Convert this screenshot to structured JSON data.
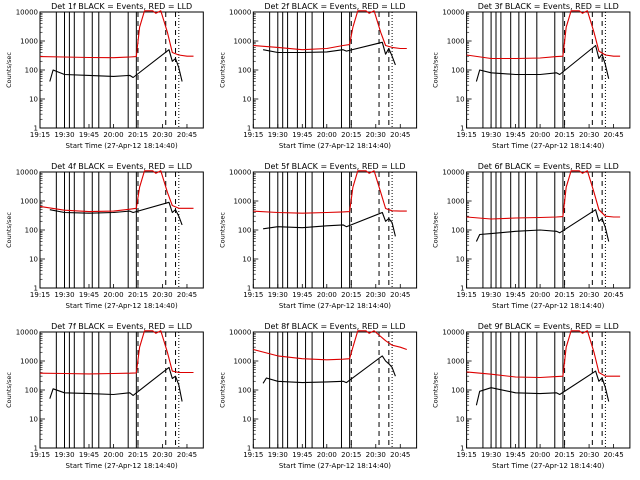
{
  "chart_data": [
    {
      "type": "line",
      "title": "Det 1f BLACK = Events, RED = LLD",
      "xlabel": "Start Time (27-Apr-12 18:14:40)",
      "ylabel": "Counts/sec",
      "y_scale": "log",
      "ylim": [
        1,
        10000
      ],
      "x_ticks": [
        "19:15",
        "19:30",
        "19:45",
        "20:00",
        "20:15",
        "20:30",
        "20:45"
      ],
      "y_ticks": [
        "1",
        "10",
        "100",
        "1000",
        "10000"
      ],
      "solid_vlines": [
        "19:25",
        "19:30",
        "19:33",
        "19:36",
        "19:42",
        "19:47",
        "19:51",
        "19:58",
        "20:09",
        "20:14"
      ],
      "dashed_vlines": [
        "20:15",
        "20:32",
        "20:38"
      ],
      "dotted_vlines": [
        "20:40"
      ],
      "series": [
        {
          "name": "RED",
          "color": "#dd0000",
          "x": [
            "19:15",
            "19:30",
            "19:45",
            "20:00",
            "20:10",
            "20:14",
            "20:16",
            "20:19",
            "20:24",
            "20:26",
            "20:29",
            "20:33",
            "20:36",
            "20:40",
            "20:45",
            "20:49"
          ],
          "y": [
            290,
            280,
            270,
            265,
            280,
            290,
            3000,
            11000,
            11000,
            9000,
            11000,
            2000,
            400,
            330,
            300,
            300
          ]
        },
        {
          "name": "BLACK",
          "color": "#000000",
          "x": [
            "19:21",
            "19:23",
            "19:30",
            "19:45",
            "20:00",
            "20:10",
            "20:12",
            "20:34",
            "20:36",
            "20:38",
            "20:40",
            "20:42"
          ],
          "y": [
            40,
            100,
            70,
            65,
            60,
            65,
            55,
            500,
            200,
            250,
            120,
            40
          ]
        }
      ]
    },
    {
      "type": "line",
      "title": "Det 2f BLACK = Events, RED = LLD",
      "xlabel": "Start Time (27-Apr-12 18:14:40)",
      "ylabel": "Counts/sec",
      "y_scale": "log",
      "ylim": [
        1,
        10000
      ],
      "x_ticks": [
        "19:15",
        "19:30",
        "19:45",
        "20:00",
        "20:15",
        "20:30",
        "20:45"
      ],
      "y_ticks": [
        "1",
        "10",
        "100",
        "1000",
        "10000"
      ],
      "solid_vlines": [
        "19:25",
        "19:30",
        "19:33",
        "19:36",
        "19:42",
        "19:47",
        "19:51",
        "19:58",
        "20:09",
        "20:14"
      ],
      "dashed_vlines": [
        "20:15",
        "20:32",
        "20:38"
      ],
      "dotted_vlines": [
        "20:40"
      ],
      "series": [
        {
          "name": "RED",
          "color": "#dd0000",
          "x": [
            "19:15",
            "19:30",
            "19:45",
            "20:00",
            "20:10",
            "20:14",
            "20:16",
            "20:19",
            "20:24",
            "20:26",
            "20:29",
            "20:33",
            "20:36",
            "20:40",
            "20:45",
            "20:49"
          ],
          "y": [
            700,
            600,
            500,
            550,
            700,
            750,
            3000,
            11000,
            11000,
            9000,
            11000,
            2000,
            700,
            600,
            550,
            550
          ]
        },
        {
          "name": "BLACK",
          "color": "#000000",
          "x": [
            "19:21",
            "19:30",
            "19:45",
            "20:00",
            "20:10",
            "20:12",
            "20:34",
            "20:36",
            "20:38",
            "20:40",
            "20:42"
          ],
          "y": [
            500,
            400,
            400,
            420,
            500,
            450,
            900,
            350,
            550,
            300,
            150
          ]
        }
      ]
    },
    {
      "type": "line",
      "title": "Det 3f BLACK = Events, RED = LLD",
      "xlabel": "Start Time (27-Apr-12 18:14:40)",
      "ylabel": "Counts/sec",
      "y_scale": "log",
      "ylim": [
        1,
        10000
      ],
      "x_ticks": [
        "19:15",
        "19:30",
        "19:45",
        "20:00",
        "20:15",
        "20:30",
        "20:45"
      ],
      "y_ticks": [
        "1",
        "10",
        "100",
        "1000",
        "10000"
      ],
      "solid_vlines": [
        "19:25",
        "19:30",
        "19:33",
        "19:36",
        "19:42",
        "19:47",
        "19:51",
        "19:58",
        "20:09",
        "20:14"
      ],
      "dashed_vlines": [
        "20:15",
        "20:32",
        "20:38"
      ],
      "dotted_vlines": [
        "20:40"
      ],
      "series": [
        {
          "name": "RED",
          "color": "#dd0000",
          "x": [
            "19:15",
            "19:30",
            "19:45",
            "20:00",
            "20:10",
            "20:14",
            "20:16",
            "20:19",
            "20:24",
            "20:26",
            "20:29",
            "20:33",
            "20:36",
            "20:40",
            "20:45",
            "20:49"
          ],
          "y": [
            330,
            250,
            250,
            260,
            290,
            300,
            3000,
            11000,
            11000,
            9000,
            11000,
            2000,
            450,
            330,
            300,
            300
          ]
        },
        {
          "name": "BLACK",
          "color": "#000000",
          "x": [
            "19:21",
            "19:23",
            "19:30",
            "19:45",
            "20:00",
            "20:10",
            "20:12",
            "20:34",
            "20:36",
            "20:38",
            "20:40",
            "20:42"
          ],
          "y": [
            40,
            100,
            80,
            70,
            70,
            80,
            70,
            700,
            250,
            350,
            150,
            50
          ]
        }
      ]
    },
    {
      "type": "line",
      "title": "Det 4f BLACK = Events, RED = LLD",
      "xlabel": "Start Time (27-Apr-12 18:14:40)",
      "ylabel": "Counts/sec",
      "y_scale": "log",
      "ylim": [
        1,
        10000
      ],
      "x_ticks": [
        "19:15",
        "19:30",
        "19:45",
        "20:00",
        "20:15",
        "20:30",
        "20:45"
      ],
      "y_ticks": [
        "1",
        "10",
        "100",
        "1000",
        "10000"
      ],
      "solid_vlines": [
        "19:25",
        "19:30",
        "19:33",
        "19:36",
        "19:42",
        "19:47",
        "19:51",
        "19:58",
        "20:09",
        "20:14"
      ],
      "dashed_vlines": [
        "20:15",
        "20:32",
        "20:38"
      ],
      "dotted_vlines": [
        "20:40"
      ],
      "series": [
        {
          "name": "RED",
          "color": "#dd0000",
          "x": [
            "19:15",
            "19:30",
            "19:45",
            "20:00",
            "20:10",
            "20:14",
            "20:16",
            "20:19",
            "20:24",
            "20:26",
            "20:29",
            "20:33",
            "20:36",
            "20:40",
            "20:45",
            "20:49"
          ],
          "y": [
            650,
            480,
            430,
            450,
            520,
            560,
            3000,
            11000,
            11000,
            9000,
            11000,
            2000,
            700,
            560,
            560,
            560
          ]
        },
        {
          "name": "BLACK",
          "color": "#000000",
          "x": [
            "19:21",
            "19:30",
            "19:45",
            "20:00",
            "20:10",
            "20:12",
            "20:34",
            "20:36",
            "20:38",
            "20:40",
            "20:42"
          ],
          "y": [
            500,
            400,
            380,
            400,
            450,
            400,
            900,
            400,
            500,
            300,
            150
          ]
        }
      ]
    },
    {
      "type": "line",
      "title": "Det 5f BLACK = Events, RED = LLD",
      "xlabel": "Start Time (27-Apr-12 18:14:40)",
      "ylabel": "Counts/sec",
      "y_scale": "log",
      "ylim": [
        1,
        10000
      ],
      "x_ticks": [
        "19:15",
        "19:30",
        "19:45",
        "20:00",
        "20:15",
        "20:30",
        "20:45"
      ],
      "y_ticks": [
        "1",
        "10",
        "100",
        "1000",
        "10000"
      ],
      "solid_vlines": [
        "19:25",
        "19:30",
        "19:33",
        "19:36",
        "19:42",
        "19:47",
        "19:51",
        "19:58",
        "20:09",
        "20:14"
      ],
      "dashed_vlines": [
        "20:15",
        "20:32",
        "20:38"
      ],
      "dotted_vlines": [
        "20:40"
      ],
      "series": [
        {
          "name": "RED",
          "color": "#dd0000",
          "x": [
            "19:15",
            "19:30",
            "19:45",
            "20:00",
            "20:10",
            "20:14",
            "20:16",
            "20:19",
            "20:24",
            "20:26",
            "20:29",
            "20:33",
            "20:36",
            "20:40",
            "20:45",
            "20:49"
          ],
          "y": [
            450,
            400,
            380,
            400,
            420,
            430,
            3000,
            11000,
            11000,
            9000,
            11000,
            2000,
            550,
            460,
            450,
            450
          ]
        },
        {
          "name": "BLACK",
          "color": "#000000",
          "x": [
            "19:21",
            "19:30",
            "19:45",
            "20:00",
            "20:10",
            "20:12",
            "20:34",
            "20:36",
            "20:38",
            "20:40",
            "20:42"
          ],
          "y": [
            110,
            130,
            120,
            140,
            150,
            130,
            400,
            200,
            250,
            180,
            60
          ]
        }
      ]
    },
    {
      "type": "line",
      "title": "Det 6f BLACK = Events, RED = LLD",
      "xlabel": "Start Time (27-Apr-12 18:14:40)",
      "ylabel": "Counts/sec",
      "y_scale": "log",
      "ylim": [
        1,
        10000
      ],
      "x_ticks": [
        "19:15",
        "19:30",
        "19:45",
        "20:00",
        "20:15",
        "20:30",
        "20:45"
      ],
      "y_ticks": [
        "1",
        "10",
        "100",
        "1000",
        "10000"
      ],
      "solid_vlines": [
        "19:25",
        "19:30",
        "19:33",
        "19:36",
        "19:42",
        "19:47",
        "19:51",
        "19:58",
        "20:09",
        "20:14"
      ],
      "dashed_vlines": [
        "20:15",
        "20:32",
        "20:38"
      ],
      "dotted_vlines": [
        "20:40"
      ],
      "series": [
        {
          "name": "RED",
          "color": "#dd0000",
          "x": [
            "19:15",
            "19:30",
            "19:45",
            "20:00",
            "20:10",
            "20:14",
            "20:16",
            "20:19",
            "20:24",
            "20:26",
            "20:29",
            "20:33",
            "20:36",
            "20:40",
            "20:45",
            "20:49"
          ],
          "y": [
            280,
            240,
            260,
            270,
            280,
            290,
            3000,
            11000,
            11000,
            9000,
            11000,
            2000,
            500,
            300,
            280,
            280
          ]
        },
        {
          "name": "BLACK",
          "color": "#000000",
          "x": [
            "19:21",
            "19:23",
            "19:30",
            "19:45",
            "20:00",
            "20:10",
            "20:12",
            "20:34",
            "20:36",
            "20:38",
            "20:40",
            "20:42"
          ],
          "y": [
            40,
            70,
            75,
            90,
            100,
            90,
            80,
            500,
            200,
            250,
            120,
            40
          ]
        }
      ]
    },
    {
      "type": "line",
      "title": "Det 7f BLACK = Events, RED = LLD",
      "xlabel": "Start Time (27-Apr-12 18:14:40)",
      "ylabel": "Counts/sec",
      "y_scale": "log",
      "ylim": [
        1,
        10000
      ],
      "x_ticks": [
        "19:15",
        "19:30",
        "19:45",
        "20:00",
        "20:15",
        "20:30",
        "20:45"
      ],
      "y_ticks": [
        "1",
        "10",
        "100",
        "1000",
        "10000"
      ],
      "solid_vlines": [
        "19:25",
        "19:30",
        "19:33",
        "19:36",
        "19:42",
        "19:47",
        "19:51",
        "19:58",
        "20:09",
        "20:14"
      ],
      "dashed_vlines": [
        "20:15",
        "20:32",
        "20:38"
      ],
      "dotted_vlines": [
        "20:40"
      ],
      "series": [
        {
          "name": "RED",
          "color": "#dd0000",
          "x": [
            "19:15",
            "19:30",
            "19:45",
            "20:00",
            "20:10",
            "20:14",
            "20:16",
            "20:19",
            "20:24",
            "20:26",
            "20:29",
            "20:33",
            "20:36",
            "20:40",
            "20:45",
            "20:49"
          ],
          "y": [
            380,
            370,
            360,
            370,
            380,
            390,
            3000,
            11000,
            11000,
            9000,
            11000,
            2000,
            450,
            400,
            400,
            400
          ]
        },
        {
          "name": "BLACK",
          "color": "#000000",
          "x": [
            "19:21",
            "19:23",
            "19:30",
            "19:45",
            "20:00",
            "20:10",
            "20:12",
            "20:34",
            "20:36",
            "20:38",
            "20:40",
            "20:42"
          ],
          "y": [
            50,
            110,
            80,
            75,
            70,
            80,
            65,
            600,
            250,
            300,
            150,
            40
          ]
        }
      ]
    },
    {
      "type": "line",
      "title": "Det 8f BLACK = Events, RED = LLD",
      "xlabel": "Start Time (27-Apr-12 18:14:40)",
      "ylabel": "Counts/sec",
      "y_scale": "log",
      "ylim": [
        1,
        10000
      ],
      "x_ticks": [
        "19:15",
        "19:30",
        "19:45",
        "20:00",
        "20:15",
        "20:30",
        "20:45"
      ],
      "y_ticks": [
        "1",
        "10",
        "100",
        "1000",
        "10000"
      ],
      "solid_vlines": [
        "19:25",
        "19:30",
        "19:33",
        "19:36",
        "19:42",
        "19:47",
        "19:51",
        "19:58",
        "20:09",
        "20:14"
      ],
      "dashed_vlines": [
        "20:15",
        "20:32",
        "20:38"
      ],
      "dotted_vlines": [
        "20:40"
      ],
      "series": [
        {
          "name": "RED",
          "color": "#dd0000",
          "x": [
            "19:15",
            "19:30",
            "19:45",
            "20:00",
            "20:10",
            "20:14",
            "20:16",
            "20:19",
            "20:24",
            "20:26",
            "20:29",
            "20:33",
            "20:36",
            "20:40",
            "20:45",
            "20:49"
          ],
          "y": [
            2500,
            1500,
            1200,
            1100,
            1150,
            1200,
            3000,
            11000,
            11000,
            9000,
            11000,
            7000,
            5000,
            3500,
            3000,
            2500
          ]
        },
        {
          "name": "BLACK",
          "color": "#000000",
          "x": [
            "19:21",
            "19:23",
            "19:30",
            "19:45",
            "20:00",
            "20:10",
            "20:12",
            "20:34",
            "20:36",
            "20:38",
            "20:40",
            "20:42"
          ],
          "y": [
            170,
            260,
            200,
            180,
            190,
            200,
            180,
            1500,
            1000,
            800,
            600,
            300
          ]
        }
      ]
    },
    {
      "type": "line",
      "title": "Det 9f BLACK = Events, RED = LLD",
      "xlabel": "Start Time (27-Apr-12 18:14:40)",
      "ylabel": "Counts/sec",
      "y_scale": "log",
      "ylim": [
        1,
        10000
      ],
      "x_ticks": [
        "19:15",
        "19:30",
        "19:45",
        "20:00",
        "20:15",
        "20:30",
        "20:45"
      ],
      "y_ticks": [
        "1",
        "10",
        "100",
        "1000",
        "10000"
      ],
      "solid_vlines": [
        "19:25",
        "19:30",
        "19:33",
        "19:36",
        "19:42",
        "19:47",
        "19:51",
        "19:58",
        "20:09",
        "20:14"
      ],
      "dashed_vlines": [
        "20:15",
        "20:32",
        "20:38"
      ],
      "dotted_vlines": [
        "20:40"
      ],
      "series": [
        {
          "name": "RED",
          "color": "#dd0000",
          "x": [
            "19:15",
            "19:30",
            "19:45",
            "20:00",
            "20:10",
            "20:14",
            "20:16",
            "20:19",
            "20:24",
            "20:26",
            "20:29",
            "20:33",
            "20:36",
            "20:40",
            "20:45",
            "20:49"
          ],
          "y": [
            420,
            350,
            280,
            270,
            290,
            300,
            3000,
            11000,
            11000,
            9000,
            11000,
            2000,
            400,
            300,
            300,
            300
          ]
        },
        {
          "name": "BLACK",
          "color": "#000000",
          "x": [
            "19:21",
            "19:23",
            "19:30",
            "19:45",
            "20:00",
            "20:10",
            "20:12",
            "20:34",
            "20:36",
            "20:38",
            "20:40",
            "20:42"
          ],
          "y": [
            30,
            90,
            120,
            80,
            75,
            80,
            70,
            450,
            200,
            260,
            120,
            40
          ]
        }
      ]
    }
  ]
}
